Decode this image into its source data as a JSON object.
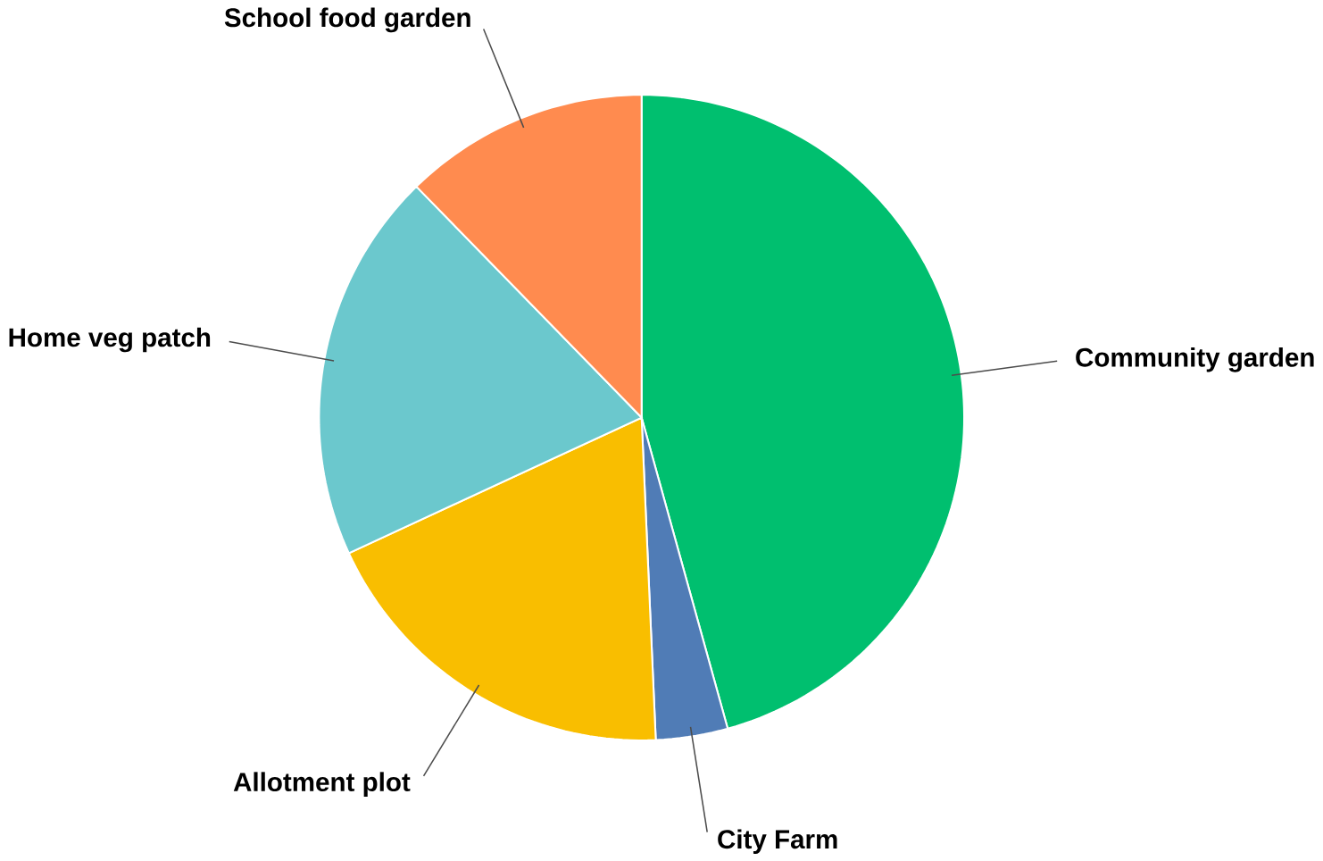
{
  "chart_data": {
    "type": "pie",
    "categories": [
      "Community garden",
      "City Farm",
      "Allotment plot",
      "Home veg patch",
      "School food garden"
    ],
    "values": [
      45.7,
      3.6,
      18.8,
      19.6,
      12.3
    ],
    "colors": [
      "#00bf6f",
      "#507cb6",
      "#f9be00",
      "#6bc8cd",
      "#ff8b4f"
    ]
  }
}
